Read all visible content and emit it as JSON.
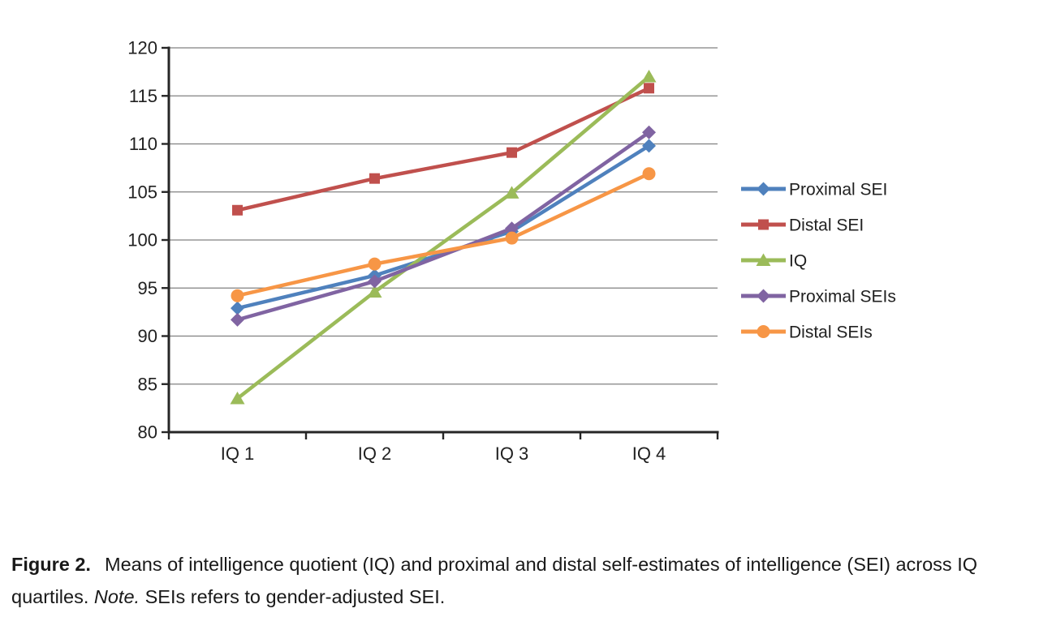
{
  "chart_data": {
    "type": "line",
    "title": "",
    "xlabel": "",
    "ylabel": "",
    "categories": [
      "IQ 1",
      "IQ 2",
      "IQ 3",
      "IQ 4"
    ],
    "series": [
      {
        "name": "Proximal SEI",
        "marker": "diamond",
        "color": "#4F81BD",
        "values": [
          92.9,
          96.3,
          100.9,
          109.8
        ]
      },
      {
        "name": "Distal SEI",
        "marker": "square",
        "color": "#C0504D",
        "values": [
          103.1,
          106.4,
          109.1,
          115.8
        ]
      },
      {
        "name": "IQ",
        "marker": "triangle",
        "color": "#9BBB59",
        "values": [
          83.5,
          94.6,
          104.9,
          117.0
        ]
      },
      {
        "name": "Proximal SEIs",
        "marker": "diamond",
        "color": "#8064A2",
        "values": [
          91.7,
          95.7,
          101.2,
          111.2
        ]
      },
      {
        "name": "Distal SEIs",
        "marker": "circle",
        "color": "#F79646",
        "values": [
          94.2,
          97.5,
          100.2,
          106.9
        ]
      }
    ],
    "ylim": [
      80,
      120
    ],
    "ytick_step": 5,
    "yticks": [
      80,
      85,
      90,
      95,
      100,
      105,
      110,
      115,
      120
    ],
    "grid": "horizontal gridlines on, no plot border",
    "legend_position": "right",
    "colors": {
      "axis": "#262626",
      "grid": "#808080",
      "tick_text": "#212121"
    }
  },
  "caption": {
    "label": "Figure 2.",
    "body": "Means of intelligence quotient (IQ) and proximal and distal self-estimates of intelligence (SEI) across IQ quartiles.",
    "note_label": "Note.",
    "note_body": "SEIs refers to gender-adjusted SEI."
  }
}
